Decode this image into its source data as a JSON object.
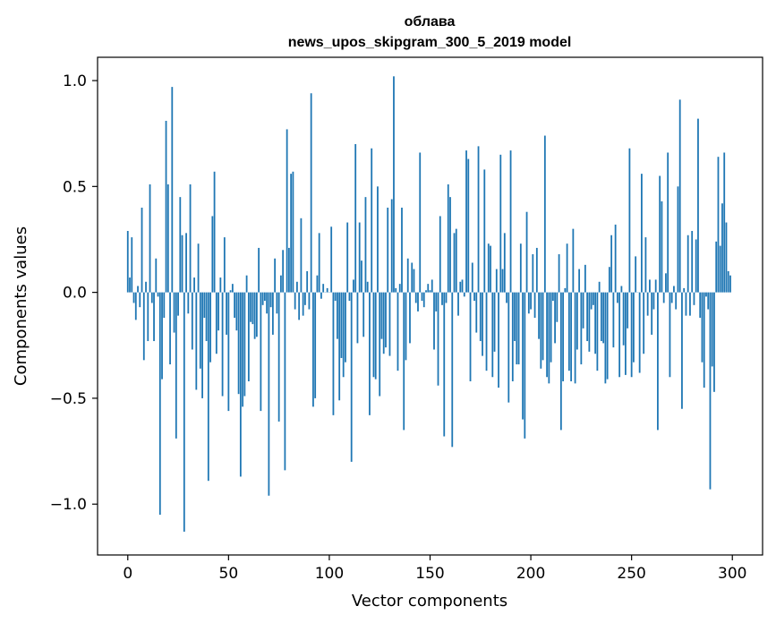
{
  "chart_data": {
    "type": "bar",
    "title_line1": "облава",
    "title_line2": "news_upos_skipgram_300_5_2019 model",
    "xlabel": "Vector components",
    "ylabel": "Components values",
    "xlim": [
      -15,
      315
    ],
    "ylim": [
      -1.24,
      1.11
    ],
    "x_ticks": [
      0,
      50,
      100,
      150,
      200,
      250,
      300
    ],
    "x_tick_labels": [
      "0",
      "50",
      "100",
      "150",
      "200",
      "250",
      "300"
    ],
    "y_ticks": [
      -1.0,
      -0.5,
      0.0,
      0.5,
      1.0
    ],
    "y_tick_labels": [
      "−1.0",
      "−0.5",
      "0.0",
      "0.5",
      "1.0"
    ],
    "grid": false,
    "bar_color": "#1f77b4",
    "values": [
      0.29,
      0.07,
      0.26,
      -0.05,
      -0.13,
      0.03,
      -0.07,
      0.4,
      -0.32,
      0.05,
      -0.23,
      0.51,
      -0.05,
      -0.23,
      0.16,
      -0.02,
      -1.05,
      -0.41,
      -0.12,
      0.81,
      0.51,
      -0.34,
      0.97,
      -0.19,
      -0.69,
      -0.11,
      0.45,
      0.27,
      -1.13,
      0.28,
      -0.1,
      0.51,
      -0.27,
      0.07,
      -0.46,
      0.23,
      -0.36,
      -0.5,
      -0.12,
      -0.23,
      -0.89,
      -0.33,
      0.36,
      0.57,
      -0.29,
      -0.18,
      0.07,
      -0.49,
      0.26,
      -0.2,
      -0.56,
      0.01,
      0.04,
      -0.12,
      -0.18,
      -0.48,
      -0.87,
      -0.54,
      -0.49,
      0.08,
      -0.42,
      -0.14,
      -0.15,
      -0.22,
      -0.21,
      0.21,
      -0.56,
      -0.06,
      -0.04,
      -0.1,
      -0.96,
      -0.07,
      -0.2,
      0.16,
      -0.1,
      -0.61,
      0.08,
      0.2,
      -0.84,
      0.77,
      0.21,
      0.56,
      0.57,
      -0.08,
      0.05,
      -0.13,
      0.35,
      -0.11,
      -0.06,
      0.1,
      -0.08,
      0.94,
      -0.54,
      -0.5,
      0.08,
      0.28,
      -0.03,
      0.04,
      0.0,
      0.02,
      0.0,
      0.31,
      -0.58,
      -0.04,
      -0.22,
      -0.51,
      -0.31,
      -0.4,
      -0.33,
      0.33,
      -0.04,
      -0.8,
      0.06,
      0.7,
      -0.24,
      0.33,
      0.15,
      -0.21,
      0.45,
      0.05,
      -0.58,
      0.68,
      -0.4,
      -0.41,
      0.5,
      -0.49,
      -0.22,
      -0.29,
      -0.26,
      0.4,
      -0.3,
      0.44,
      1.02,
      0.02,
      -0.37,
      0.04,
      0.4,
      -0.65,
      -0.32,
      0.16,
      -0.24,
      0.14,
      0.11,
      -0.05,
      -0.09,
      0.66,
      -0.04,
      -0.07,
      0.01,
      0.04,
      0.01,
      0.06,
      -0.27,
      -0.09,
      -0.44,
      0.36,
      -0.06,
      -0.68,
      -0.05,
      0.51,
      0.45,
      -0.73,
      0.28,
      0.3,
      -0.11,
      0.05,
      0.06,
      -0.02,
      0.67,
      0.63,
      -0.42,
      0.14,
      -0.04,
      -0.19,
      0.69,
      -0.23,
      -0.3,
      0.58,
      -0.37,
      0.23,
      0.22,
      -0.4,
      -0.28,
      0.11,
      -0.45,
      0.65,
      0.11,
      0.28,
      -0.05,
      -0.52,
      0.67,
      -0.42,
      -0.23,
      -0.34,
      -0.34,
      0.23,
      -0.6,
      -0.69,
      0.38,
      -0.1,
      -0.08,
      0.18,
      -0.12,
      0.21,
      -0.22,
      -0.36,
      -0.32,
      0.74,
      -0.4,
      -0.43,
      -0.33,
      -0.04,
      -0.24,
      -0.14,
      0.18,
      -0.65,
      -0.42,
      0.02,
      0.23,
      -0.37,
      -0.42,
      0.3,
      -0.43,
      -0.27,
      0.11,
      -0.34,
      -0.17,
      0.13,
      -0.23,
      -0.28,
      -0.08,
      -0.06,
      -0.29,
      -0.37,
      0.05,
      -0.23,
      -0.24,
      -0.43,
      -0.41,
      0.12,
      0.27,
      -0.26,
      0.32,
      -0.05,
      -0.4,
      0.03,
      -0.25,
      -0.39,
      -0.17,
      0.68,
      -0.4,
      -0.33,
      0.17,
      0.0,
      -0.38,
      0.56,
      -0.29,
      0.26,
      -0.11,
      0.06,
      -0.2,
      -0.08,
      0.06,
      -0.65,
      0.55,
      0.43,
      -0.05,
      0.09,
      0.66,
      -0.4,
      -0.05,
      0.03,
      -0.08,
      0.5,
      0.91,
      -0.55,
      0.02,
      -0.11,
      0.27,
      -0.11,
      0.29,
      -0.06,
      0.25,
      0.82,
      -0.12,
      -0.33,
      -0.45,
      -0.02,
      -0.08,
      -0.93,
      -0.35,
      -0.47,
      0.24,
      0.64,
      0.22,
      0.42,
      0.66,
      0.33,
      0.1,
      0.08
    ]
  }
}
